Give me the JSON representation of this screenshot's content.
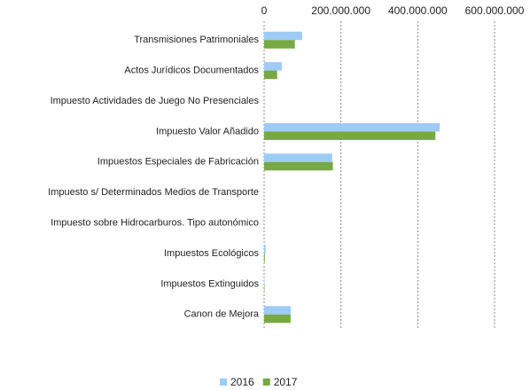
{
  "chart_data": {
    "type": "hbar",
    "categories": [
      "Transmisiones Patrimoniales",
      "Actos Jurídicos Documentados",
      "Impuesto Actividades de Juego No Presenciales",
      "Impuesto Valor Añadido",
      "Impuestos Especiales de Fabricación",
      "Impuesto s/ Determinados Medios de Transporte",
      "Impuesto sobre Hidrocarburos. Tipo autonómico",
      "Impuestos Ecológicos",
      "Impuestos Extinguidos",
      "Canon de Mejora"
    ],
    "series": [
      {
        "name": "2016",
        "color": "#9ecbf5",
        "values": [
          99000000,
          46000000,
          0,
          457000000,
          177000000,
          0,
          0,
          4000000,
          1000000,
          69000000
        ]
      },
      {
        "name": "2017",
        "color": "#77a844",
        "values": [
          80000000,
          34000000,
          0,
          446000000,
          179000000,
          0,
          0,
          2000000,
          1000000,
          69000000
        ]
      }
    ],
    "xlim": [
      0,
      600000000
    ],
    "xticks": [
      0,
      {
        "value": 200000000,
        "label": "200.000.000"
      },
      {
        "value": 400000000,
        "label": "400.000.000"
      },
      {
        "value": 600000000,
        "label": "600.000.000"
      }
    ],
    "grid": true,
    "legend": "bottom"
  }
}
